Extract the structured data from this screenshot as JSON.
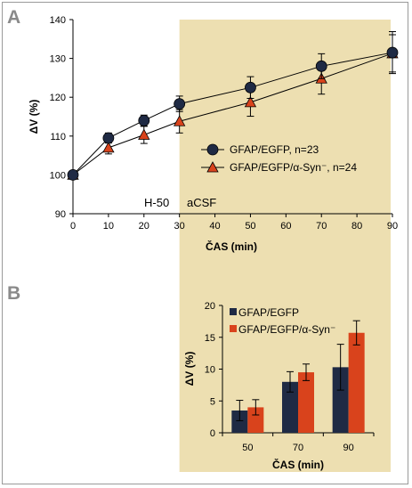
{
  "panel_labels": {
    "a": "A",
    "b": "B"
  },
  "colors": {
    "shade": "#EDDFB1",
    "series_egfp": "#1F2A44",
    "series_syn": "#D9431C",
    "axis": "#000000"
  },
  "chart_data": [
    {
      "type": "line",
      "panel": "A",
      "xlabel": "ČAS (min)",
      "ylabel": "ΔV (%)",
      "xlim": [
        0,
        90
      ],
      "ylim": [
        90,
        140
      ],
      "x_ticks": [
        0,
        10,
        20,
        30,
        40,
        50,
        60,
        70,
        80,
        90
      ],
      "y_ticks": [
        90,
        100,
        110,
        120,
        130,
        140
      ],
      "shaded_region": {
        "from": 30,
        "to": 90
      },
      "annotations": [
        {
          "text": "H-50",
          "x": 24
        },
        {
          "text": "aCSF",
          "x": 37
        }
      ],
      "legend_position": "center-right",
      "series": [
        {
          "name": "GFAP/EGFP, n=23",
          "marker": "circle",
          "color": "#1F2A44",
          "x": [
            0,
            10,
            20,
            30,
            50,
            70,
            90
          ],
          "y": [
            100,
            109.5,
            114,
            118.3,
            122.5,
            128,
            131.5
          ],
          "err": [
            0,
            1.3,
            1.4,
            2.0,
            2.8,
            3.2,
            5.4
          ]
        },
        {
          "name": "GFAP/EGFP/α-Syn⁻, n=24",
          "marker": "triangle",
          "color": "#D9431C",
          "x": [
            0,
            10,
            20,
            30,
            50,
            70,
            90
          ],
          "y": [
            100,
            107,
            110.3,
            113.8,
            118.7,
            124.8,
            131.3
          ],
          "err": [
            0,
            1.6,
            2.2,
            3.0,
            3.6,
            4.0,
            4.8
          ]
        }
      ]
    },
    {
      "type": "bar",
      "panel": "B",
      "xlabel": "ČAS (min)",
      "ylabel": "ΔV (%)",
      "categories": [
        "50",
        "70",
        "90"
      ],
      "ylim": [
        0,
        20
      ],
      "y_ticks": [
        0,
        5,
        10,
        15,
        20
      ],
      "legend_position": "top-left",
      "series": [
        {
          "name": "GFAP/EGFP",
          "color": "#1F2A44",
          "values": [
            3.5,
            8,
            10.3
          ],
          "err": [
            1.6,
            1.6,
            3.6
          ]
        },
        {
          "name": "GFAP/EGFP/α-Syn⁻",
          "color": "#D9431C",
          "values": [
            4,
            9.5,
            15.7
          ],
          "err": [
            1.2,
            1.3,
            1.9
          ]
        }
      ]
    }
  ]
}
